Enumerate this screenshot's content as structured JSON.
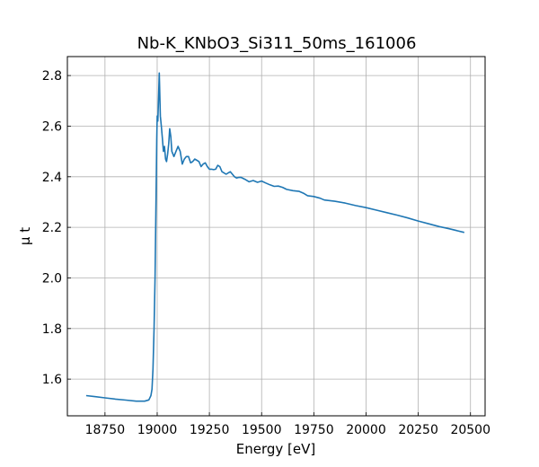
{
  "chart_data": {
    "type": "line",
    "title": "Nb-K_KNbO3_Si311_50ms_161006",
    "xlabel": "Energy [eV]",
    "ylabel": "μ t",
    "xlim": [
      18570,
      20570
    ],
    "ylim": [
      1.455,
      2.875
    ],
    "xticks": [
      18750,
      19000,
      19250,
      19500,
      19750,
      20000,
      20250,
      20500
    ],
    "xtick_labels": [
      "18750",
      "19000",
      "19250",
      "19500",
      "19750",
      "20000",
      "20250",
      "20500"
    ],
    "yticks": [
      1.6,
      1.8,
      2.0,
      2.2,
      2.4,
      2.6,
      2.8
    ],
    "ytick_labels": [
      "1.6",
      "1.8",
      "2.0",
      "2.2",
      "2.4",
      "2.6",
      "2.8"
    ],
    "grid": true,
    "color": "#1f77b4",
    "series": [
      {
        "x": [
          18660,
          18700,
          18750,
          18800,
          18850,
          18900,
          18940,
          18960,
          18970,
          18975,
          18980,
          18985,
          18990,
          18993,
          18996,
          18998,
          19000,
          19003,
          19006,
          19010,
          19015,
          19020,
          19025,
          19030,
          19035,
          19040,
          19045,
          19050,
          19055,
          19060,
          19065,
          19070,
          19080,
          19090,
          19100,
          19110,
          19120,
          19130,
          19140,
          19150,
          19160,
          19170,
          19180,
          19190,
          19200,
          19210,
          19220,
          19230,
          19240,
          19250,
          19260,
          19270,
          19280,
          19290,
          19300,
          19310,
          19320,
          19330,
          19340,
          19350,
          19360,
          19370,
          19380,
          19390,
          19400,
          19420,
          19440,
          19460,
          19480,
          19500,
          19520,
          19540,
          19560,
          19580,
          19600,
          19620,
          19650,
          19680,
          19700,
          19720,
          19750,
          19780,
          19800,
          19850,
          19900,
          19950,
          20000,
          20050,
          20100,
          20150,
          20200,
          20250,
          20300,
          20350,
          20400,
          20470
        ],
        "y": [
          1.535,
          1.531,
          1.526,
          1.521,
          1.517,
          1.513,
          1.513,
          1.518,
          1.535,
          1.56,
          1.64,
          1.8,
          2.0,
          2.2,
          2.4,
          2.55,
          2.64,
          2.62,
          2.7,
          2.81,
          2.64,
          2.6,
          2.55,
          2.5,
          2.52,
          2.47,
          2.46,
          2.49,
          2.53,
          2.59,
          2.56,
          2.5,
          2.48,
          2.5,
          2.52,
          2.5,
          2.45,
          2.47,
          2.48,
          2.48,
          2.455,
          2.46,
          2.47,
          2.465,
          2.46,
          2.44,
          2.45,
          2.455,
          2.44,
          2.43,
          2.43,
          2.428,
          2.43,
          2.445,
          2.44,
          2.42,
          2.415,
          2.41,
          2.415,
          2.42,
          2.41,
          2.4,
          2.395,
          2.397,
          2.398,
          2.39,
          2.38,
          2.385,
          2.378,
          2.383,
          2.375,
          2.368,
          2.362,
          2.363,
          2.358,
          2.35,
          2.345,
          2.342,
          2.335,
          2.325,
          2.322,
          2.315,
          2.308,
          2.303,
          2.296,
          2.286,
          2.278,
          2.268,
          2.258,
          2.248,
          2.237,
          2.225,
          2.214,
          2.203,
          2.194,
          2.18
        ]
      }
    ]
  }
}
